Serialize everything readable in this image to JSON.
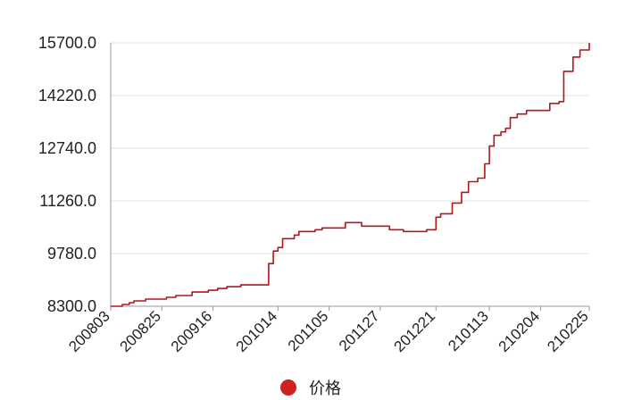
{
  "chart_data": {
    "type": "line",
    "title": "",
    "xlabel": "",
    "ylabel": "",
    "ylim": [
      8300,
      15700
    ],
    "y_ticks": [
      "8300.0",
      "9780.0",
      "11260.0",
      "12740.0",
      "14220.0",
      "15700.0"
    ],
    "y_tick_values": [
      8300,
      9780,
      11260,
      12740,
      14220,
      15700
    ],
    "x_ticks": [
      "200803",
      "200825",
      "200916",
      "201014",
      "201105",
      "201127",
      "201221",
      "210113",
      "210204",
      "210225"
    ],
    "grid": "horizontal",
    "legend_position": "bottom-center",
    "colors": {
      "series": "#b3161b",
      "legend_marker": "#cc2222",
      "grid": "#e0e0e0",
      "axis": "#999999"
    },
    "series": [
      {
        "name": "价格",
        "points": [
          [
            "200803",
            8300
          ],
          [
            "200808",
            8350
          ],
          [
            "200811",
            8400
          ],
          [
            "200813",
            8450
          ],
          [
            "200818",
            8500
          ],
          [
            "200825",
            8500
          ],
          [
            "200827",
            8550
          ],
          [
            "200831",
            8600
          ],
          [
            "200907",
            8700
          ],
          [
            "200914",
            8750
          ],
          [
            "200918",
            8800
          ],
          [
            "200922",
            8850
          ],
          [
            "200928",
            8900
          ],
          [
            "201010",
            9500
          ],
          [
            "201012",
            9850
          ],
          [
            "201014",
            9950
          ],
          [
            "201016",
            10200
          ],
          [
            "201021",
            10300
          ],
          [
            "201023",
            10400
          ],
          [
            "201030",
            10450
          ],
          [
            "201102",
            10500
          ],
          [
            "201105",
            10500
          ],
          [
            "201112",
            10650
          ],
          [
            "201119",
            10550
          ],
          [
            "201127",
            10550
          ],
          [
            "201201",
            10450
          ],
          [
            "201207",
            10400
          ],
          [
            "201214",
            10400
          ],
          [
            "201217",
            10450
          ],
          [
            "201221",
            10800
          ],
          [
            "201223",
            10900
          ],
          [
            "201228",
            11200
          ],
          [
            "210101",
            11500
          ],
          [
            "210104",
            11800
          ],
          [
            "210108",
            11900
          ],
          [
            "210111",
            12300
          ],
          [
            "210113",
            12800
          ],
          [
            "210115",
            13100
          ],
          [
            "210118",
            13200
          ],
          [
            "210120",
            13300
          ],
          [
            "210122",
            13600
          ],
          [
            "210125",
            13700
          ],
          [
            "210129",
            13800
          ],
          [
            "210204",
            13800
          ],
          [
            "210208",
            14000
          ],
          [
            "210212",
            14050
          ],
          [
            "210214",
            14900
          ],
          [
            "210218",
            15300
          ],
          [
            "210221",
            15500
          ],
          [
            "210224",
            15500
          ],
          [
            "210225",
            15700
          ]
        ]
      }
    ]
  }
}
